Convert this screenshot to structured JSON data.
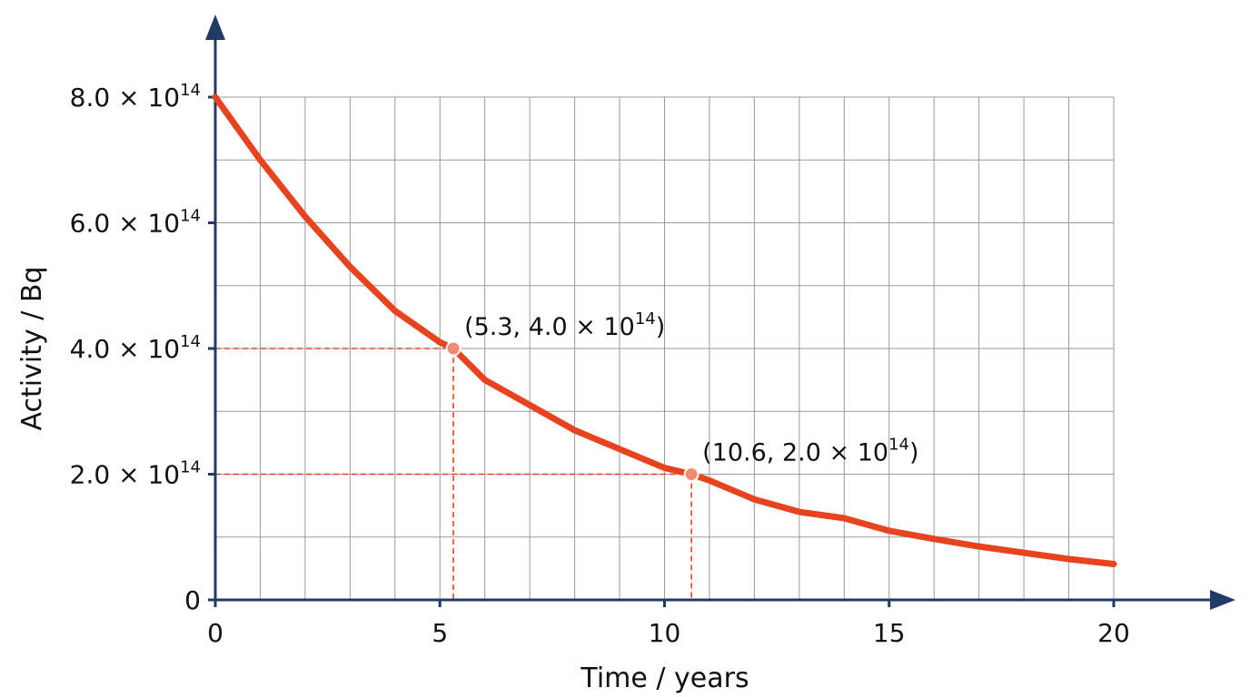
{
  "chart_data": {
    "type": "line",
    "title": "",
    "xlabel": "Time / years",
    "ylabel": "Activity / Bq",
    "xlim": [
      0,
      20
    ],
    "ylim": [
      0,
      800000000000000.0
    ],
    "grid": true,
    "x_ticks": [
      {
        "value": 0,
        "label": "0"
      },
      {
        "value": 5,
        "label": "5"
      },
      {
        "value": 10,
        "label": "10"
      },
      {
        "value": 15,
        "label": "15"
      },
      {
        "value": 20,
        "label": "20"
      }
    ],
    "y_ticks": [
      {
        "value": 0,
        "mantissa": "0",
        "times": "",
        "base": "",
        "exponent": ""
      },
      {
        "value": 200000000000000.0,
        "mantissa": "2.0",
        "times": "×",
        "base": "10",
        "exponent": "14"
      },
      {
        "value": 400000000000000.0,
        "mantissa": "4.0",
        "times": "×",
        "base": "10",
        "exponent": "14"
      },
      {
        "value": 600000000000000.0,
        "mantissa": "6.0",
        "times": "×",
        "base": "10",
        "exponent": "14"
      },
      {
        "value": 800000000000000.0,
        "mantissa": "8.0",
        "times": "×",
        "base": "10",
        "exponent": "14"
      }
    ],
    "series": [
      {
        "color": "#e8431f",
        "x": [
          0,
          1,
          2,
          3,
          4,
          5,
          5.3,
          6,
          7,
          8,
          9,
          10,
          10.6,
          11,
          12,
          13,
          14,
          15,
          16,
          17,
          18,
          19,
          20
        ],
        "y": [
          800000000000000.0,
          700000000000000.0,
          610000000000000.0,
          530000000000000.0,
          460000000000000.0,
          410000000000000.0,
          400000000000000.0,
          350000000000000.0,
          310000000000000.0,
          270000000000000.0,
          240000000000000.0,
          210000000000000.0,
          200000000000000.0,
          190000000000000.0,
          160000000000000.0,
          140000000000000.0,
          130000000000000.0,
          110000000000000.0,
          97000000000000.0,
          85000000000000.0,
          75000000000000.0,
          65000000000000.0,
          57000000000000.0
        ]
      }
    ],
    "annotations": [
      {
        "x": 5.3,
        "y": 400000000000000.0,
        "x_text": "5.3",
        "y_mantissa": "4.0",
        "times": "×",
        "base": "10",
        "exponent": "14"
      },
      {
        "x": 10.6,
        "y": 200000000000000.0,
        "x_text": "10.6",
        "y_mantissa": "2.0",
        "times": "×",
        "base": "10",
        "exponent": "14"
      }
    ],
    "colors": {
      "axis": "#1f3b66",
      "grid": "#9a9a9a",
      "curve": "#e8431f",
      "guide": "#e8431f",
      "marker_fill": "#f28b73"
    }
  }
}
